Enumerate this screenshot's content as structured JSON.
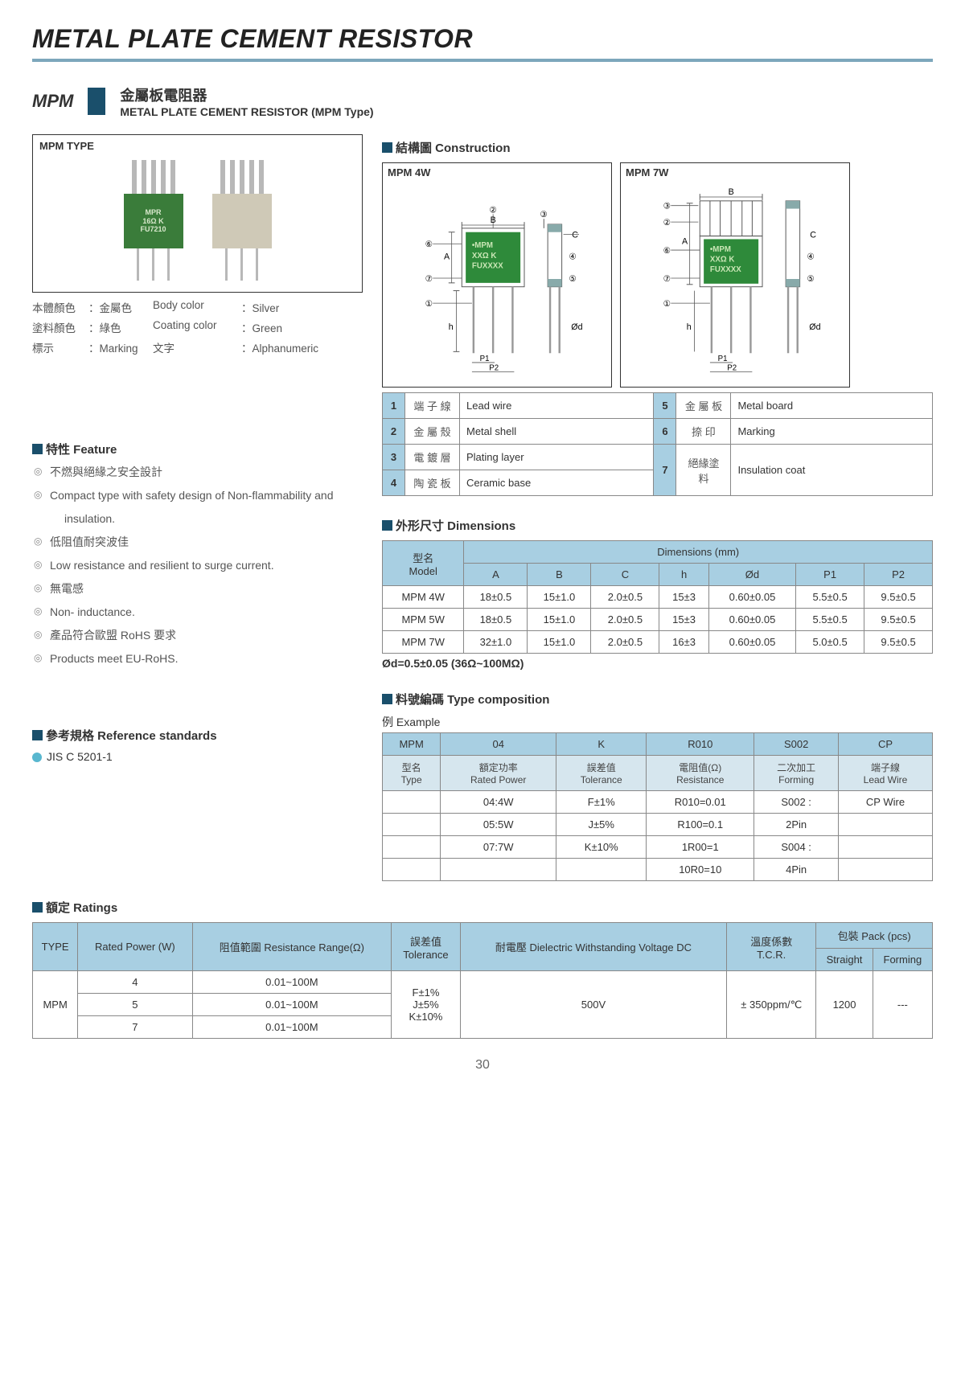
{
  "title": "METAL PLATE CEMENT RESISTOR",
  "mpm": {
    "label": "MPM",
    "cn": "金屬板電阻器",
    "en": "METAL PLATE CEMENT RESISTOR (MPM Type)"
  },
  "photo": {
    "title": "MPM TYPE",
    "mark": "MPR\n16Ω K\nFU7210"
  },
  "attrs": {
    "r0": [
      "本體顏色",
      "：金屬色",
      "Body color",
      "：Silver"
    ],
    "r1": [
      "塗料顏色",
      "：綠色",
      "Coating color",
      "：Green"
    ],
    "r2": [
      "標示",
      "：Marking",
      "文字",
      "：Alphanumeric"
    ]
  },
  "feature": {
    "head": "特性 Feature",
    "items": [
      "不燃與絕緣之安全設計",
      "Compact type with safety design of Non-flammability and",
      {
        "cls": "indent",
        "text": "insulation."
      },
      "低阻值耐突波佳",
      "Low resistance and resilient to surge current.",
      "無電感",
      "Non- inductance.",
      "產品符合歐盟 RoHS 要求",
      "Products meet  EU-RoHS."
    ]
  },
  "ref": {
    "head": "參考規格 Reference standards",
    "item": "JIS C 5201-1"
  },
  "construction": {
    "head": "結構圖 Construction",
    "a_title": "MPM 4W",
    "b_title": "MPM 7W",
    "mark": "•MPM\nXXΩ K\nFUXXXX",
    "legend": [
      [
        "1",
        "端 子 線",
        "Lead wire",
        "5",
        "金 屬 板",
        "Metal board"
      ],
      [
        "2",
        "金 屬 殼",
        "Metal shell",
        "6",
        "捺   印",
        "Marking"
      ],
      [
        "3",
        "電 鍍 層",
        "Plating layer",
        "7",
        "絕緣塗料",
        "Insulation coat"
      ],
      [
        "4",
        "陶 瓷 板",
        "Ceramic base",
        "",
        "",
        ""
      ]
    ]
  },
  "dims": {
    "head": "外形尺寸 Dimensions",
    "model_cn": "型名",
    "model_en": "Model",
    "dim_label": "Dimensions (mm)",
    "cols": [
      "A",
      "B",
      "C",
      "h",
      "Ød",
      "P1",
      "P2"
    ],
    "rows": [
      [
        "MPM 4W",
        "18±0.5",
        "15±1.0",
        "2.0±0.5",
        "15±3",
        "0.60±0.05",
        "5.5±0.5",
        "9.5±0.5"
      ],
      [
        "MPM 5W",
        "18±0.5",
        "15±1.0",
        "2.0±0.5",
        "15±3",
        "0.60±0.05",
        "5.5±0.5",
        "9.5±0.5"
      ],
      [
        "MPM 7W",
        "32±1.0",
        "15±1.0",
        "2.0±0.5",
        "16±3",
        "0.60±0.05",
        "5.0±0.5",
        "9.5±0.5"
      ]
    ],
    "note": "Ød=0.5±0.05 (36Ω~100MΩ)"
  },
  "typecomp": {
    "head": "料號編碼 Type composition",
    "ex": "例   Example",
    "top": [
      "MPM",
      "04",
      "K",
      "R010",
      "S002",
      "CP"
    ],
    "mid": [
      [
        "型名",
        "Type"
      ],
      [
        "額定功率",
        "Rated Power"
      ],
      [
        "誤差值",
        "Tolerance"
      ],
      [
        "電阻值(Ω)",
        "Resistance"
      ],
      [
        "二次加工",
        "Forming"
      ],
      [
        "端子線",
        "Lead Wire"
      ]
    ],
    "bot": [
      [
        "",
        "04:4W",
        "F±1%",
        "R010=0.01",
        "S002 :",
        "CP Wire"
      ],
      [
        "",
        "05:5W",
        "J±5%",
        "R100=0.1",
        "2Pin",
        ""
      ],
      [
        "",
        "07:7W",
        "K±10%",
        "1R00=1",
        "S004 :",
        ""
      ],
      [
        "",
        "",
        "",
        "10R0=10",
        "4Pin",
        ""
      ]
    ]
  },
  "ratings": {
    "head": "額定 Ratings",
    "cols": {
      "type": "TYPE",
      "rp": "Rated Power (W)",
      "rr": "阻值範圍 Resistance Range(Ω)",
      "tol": "誤差值\nTolerance",
      "dwv": "耐電壓 Dielectric Withstanding Voltage DC",
      "tcr": "溫度係數\nT.C.R.",
      "pack": "包裝 Pack (pcs)",
      "s": "Straight",
      "f": "Forming"
    },
    "type": "MPM",
    "tol": "F±1%\nJ±5%\nK±10%",
    "dwv": "500V",
    "tcr": "± 350ppm/℃",
    "straight": "1200",
    "forming": "---",
    "rows": [
      [
        "4",
        "0.01~100M"
      ],
      [
        "5",
        "0.01~100M"
      ],
      [
        "7",
        "0.01~100M"
      ]
    ]
  },
  "page": "30"
}
